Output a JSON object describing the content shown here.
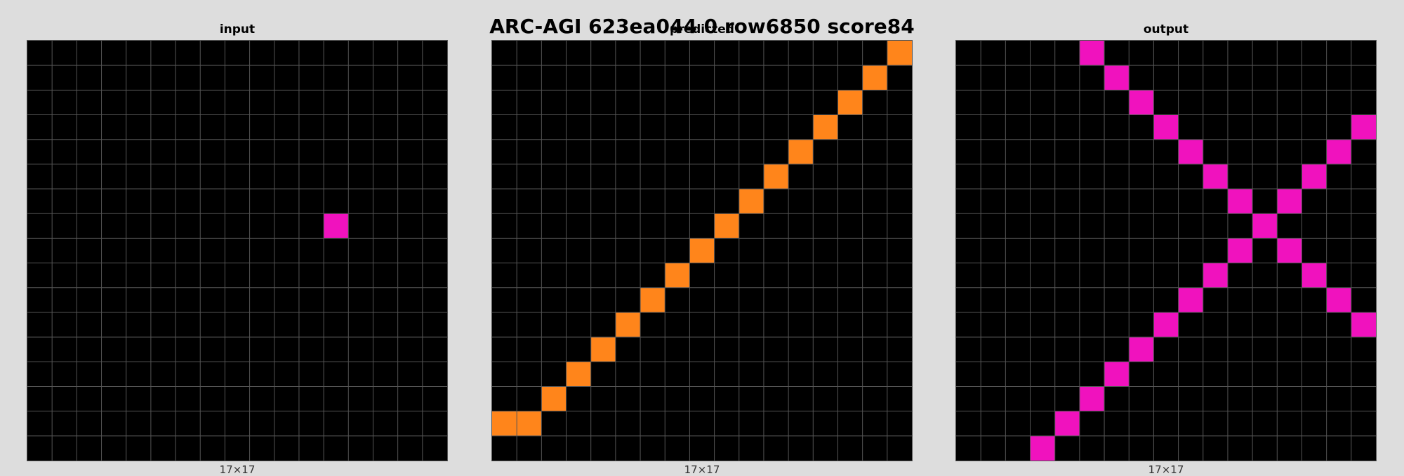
{
  "title": "ARC-AGI 623ea044 0 row6850 score84",
  "palette": {
    "0": "#000000",
    "6": "#f012be",
    "7": "#ff851b"
  },
  "grid_line_color": "#555555",
  "panels": [
    {
      "id": "input",
      "label": "input",
      "caption": "17×17",
      "rows": 17,
      "cols": 17,
      "cells": [
        {
          "r": 7,
          "c": 12,
          "v": 6
        }
      ]
    },
    {
      "id": "predicted",
      "label": "predicted",
      "caption": "17×17",
      "rows": 17,
      "cols": 17,
      "cells": [
        {
          "r": 0,
          "c": 16,
          "v": 7
        },
        {
          "r": 1,
          "c": 15,
          "v": 7
        },
        {
          "r": 2,
          "c": 14,
          "v": 7
        },
        {
          "r": 3,
          "c": 13,
          "v": 7
        },
        {
          "r": 4,
          "c": 12,
          "v": 7
        },
        {
          "r": 5,
          "c": 11,
          "v": 7
        },
        {
          "r": 6,
          "c": 10,
          "v": 7
        },
        {
          "r": 7,
          "c": 9,
          "v": 7
        },
        {
          "r": 8,
          "c": 8,
          "v": 7
        },
        {
          "r": 9,
          "c": 7,
          "v": 7
        },
        {
          "r": 10,
          "c": 6,
          "v": 7
        },
        {
          "r": 11,
          "c": 5,
          "v": 7
        },
        {
          "r": 12,
          "c": 4,
          "v": 7
        },
        {
          "r": 13,
          "c": 3,
          "v": 7
        },
        {
          "r": 14,
          "c": 2,
          "v": 7
        },
        {
          "r": 15,
          "c": 1,
          "v": 7
        },
        {
          "r": 15,
          "c": 0,
          "v": 7
        }
      ]
    },
    {
      "id": "output",
      "label": "output",
      "caption": "17×17",
      "rows": 17,
      "cols": 17,
      "cells": [
        {
          "r": 0,
          "c": 5,
          "v": 6
        },
        {
          "r": 1,
          "c": 6,
          "v": 6
        },
        {
          "r": 2,
          "c": 7,
          "v": 6
        },
        {
          "r": 3,
          "c": 8,
          "v": 6
        },
        {
          "r": 3,
          "c": 16,
          "v": 6
        },
        {
          "r": 4,
          "c": 9,
          "v": 6
        },
        {
          "r": 4,
          "c": 15,
          "v": 6
        },
        {
          "r": 5,
          "c": 10,
          "v": 6
        },
        {
          "r": 5,
          "c": 14,
          "v": 6
        },
        {
          "r": 6,
          "c": 11,
          "v": 6
        },
        {
          "r": 6,
          "c": 13,
          "v": 6
        },
        {
          "r": 7,
          "c": 12,
          "v": 6
        },
        {
          "r": 8,
          "c": 11,
          "v": 6
        },
        {
          "r": 8,
          "c": 13,
          "v": 6
        },
        {
          "r": 9,
          "c": 10,
          "v": 6
        },
        {
          "r": 9,
          "c": 14,
          "v": 6
        },
        {
          "r": 10,
          "c": 9,
          "v": 6
        },
        {
          "r": 10,
          "c": 15,
          "v": 6
        },
        {
          "r": 11,
          "c": 8,
          "v": 6
        },
        {
          "r": 11,
          "c": 16,
          "v": 6
        },
        {
          "r": 12,
          "c": 7,
          "v": 6
        },
        {
          "r": 13,
          "c": 6,
          "v": 6
        },
        {
          "r": 14,
          "c": 5,
          "v": 6
        },
        {
          "r": 15,
          "c": 4,
          "v": 6
        },
        {
          "r": 16,
          "c": 3,
          "v": 6
        }
      ]
    }
  ]
}
